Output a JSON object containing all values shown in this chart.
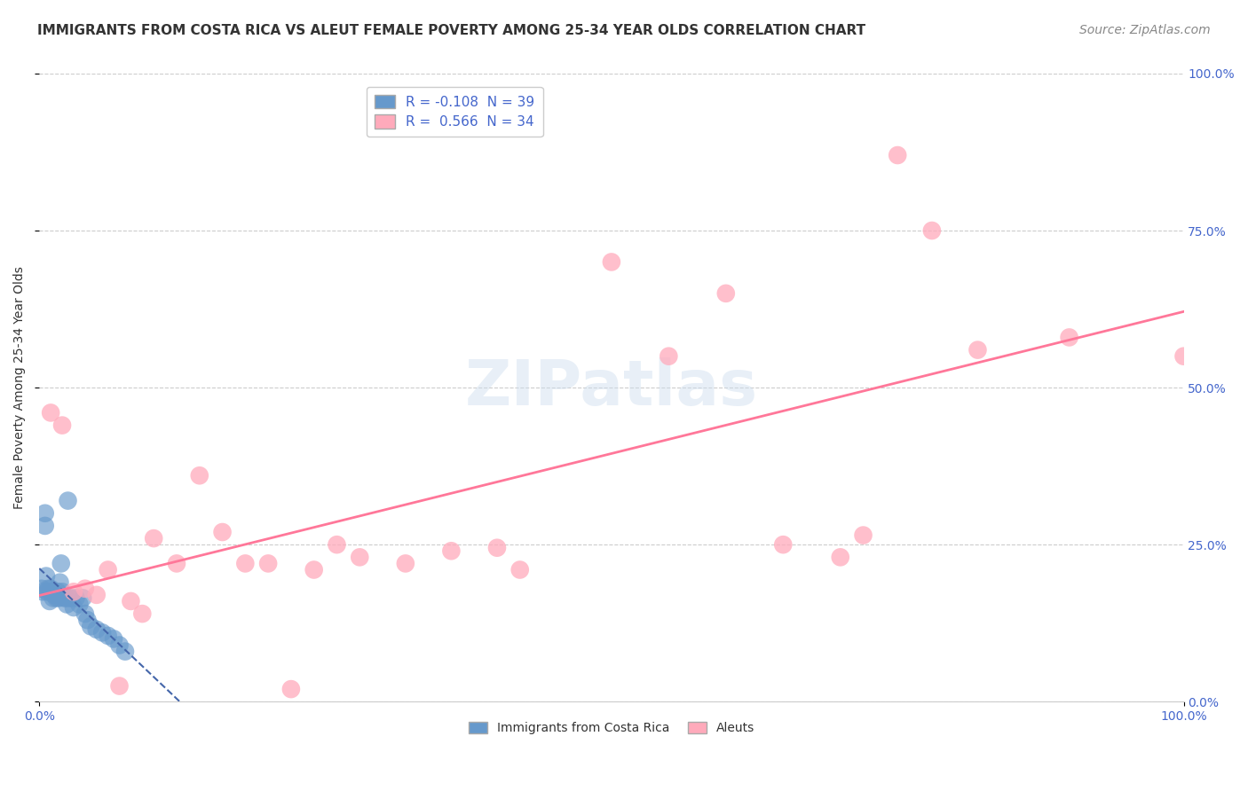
{
  "title": "IMMIGRANTS FROM COSTA RICA VS ALEUT FEMALE POVERTY AMONG 25-34 YEAR OLDS CORRELATION CHART",
  "source": "Source: ZipAtlas.com",
  "ylabel": "Female Poverty Among 25-34 Year Olds",
  "xlim": [
    0.0,
    1.0
  ],
  "ylim": [
    0.0,
    1.0
  ],
  "xtick_labels": [
    "0.0%",
    "100.0%"
  ],
  "ytick_labels": [
    "0.0%",
    "25.0%",
    "50.0%",
    "75.0%",
    "100.0%"
  ],
  "ytick_positions": [
    0.0,
    0.25,
    0.5,
    0.75,
    1.0
  ],
  "grid_color": "#cccccc",
  "background_color": "#ffffff",
  "watermark_text": "ZIPatlas",
  "color_blue": "#6699cc",
  "color_pink": "#ffaabb",
  "color_line_blue": "#4466aa",
  "color_line_pink": "#ff7799",
  "scatter_blue": [
    [
      0.002,
      0.18
    ],
    [
      0.003,
      0.175
    ],
    [
      0.005,
      0.3
    ],
    [
      0.005,
      0.28
    ],
    [
      0.006,
      0.2
    ],
    [
      0.007,
      0.175
    ],
    [
      0.008,
      0.18
    ],
    [
      0.009,
      0.16
    ],
    [
      0.01,
      0.175
    ],
    [
      0.01,
      0.18
    ],
    [
      0.012,
      0.175
    ],
    [
      0.012,
      0.165
    ],
    [
      0.013,
      0.17
    ],
    [
      0.014,
      0.17
    ],
    [
      0.015,
      0.165
    ],
    [
      0.016,
      0.175
    ],
    [
      0.017,
      0.165
    ],
    [
      0.018,
      0.19
    ],
    [
      0.019,
      0.22
    ],
    [
      0.02,
      0.175
    ],
    [
      0.022,
      0.165
    ],
    [
      0.023,
      0.165
    ],
    [
      0.024,
      0.155
    ],
    [
      0.025,
      0.32
    ],
    [
      0.026,
      0.165
    ],
    [
      0.028,
      0.165
    ],
    [
      0.03,
      0.15
    ],
    [
      0.032,
      0.165
    ],
    [
      0.035,
      0.155
    ],
    [
      0.038,
      0.165
    ],
    [
      0.04,
      0.14
    ],
    [
      0.042,
      0.13
    ],
    [
      0.045,
      0.12
    ],
    [
      0.05,
      0.115
    ],
    [
      0.055,
      0.11
    ],
    [
      0.06,
      0.105
    ],
    [
      0.065,
      0.1
    ],
    [
      0.07,
      0.09
    ],
    [
      0.075,
      0.08
    ]
  ],
  "scatter_pink": [
    [
      0.01,
      0.46
    ],
    [
      0.02,
      0.44
    ],
    [
      0.03,
      0.175
    ],
    [
      0.04,
      0.18
    ],
    [
      0.05,
      0.17
    ],
    [
      0.06,
      0.21
    ],
    [
      0.07,
      0.025
    ],
    [
      0.08,
      0.16
    ],
    [
      0.09,
      0.14
    ],
    [
      0.1,
      0.26
    ],
    [
      0.12,
      0.22
    ],
    [
      0.14,
      0.36
    ],
    [
      0.16,
      0.27
    ],
    [
      0.18,
      0.22
    ],
    [
      0.2,
      0.22
    ],
    [
      0.22,
      0.02
    ],
    [
      0.24,
      0.21
    ],
    [
      0.26,
      0.25
    ],
    [
      0.28,
      0.23
    ],
    [
      0.32,
      0.22
    ],
    [
      0.36,
      0.24
    ],
    [
      0.4,
      0.245
    ],
    [
      0.42,
      0.21
    ],
    [
      0.5,
      0.7
    ],
    [
      0.55,
      0.55
    ],
    [
      0.6,
      0.65
    ],
    [
      0.65,
      0.25
    ],
    [
      0.7,
      0.23
    ],
    [
      0.72,
      0.265
    ],
    [
      0.75,
      0.87
    ],
    [
      0.78,
      0.75
    ],
    [
      0.82,
      0.56
    ],
    [
      0.9,
      0.58
    ],
    [
      1.0,
      0.55
    ]
  ],
  "title_fontsize": 11,
  "label_fontsize": 10,
  "tick_fontsize": 10,
  "source_fontsize": 10,
  "legend1_R": "-0.108",
  "legend1_N": "39",
  "legend2_R": "0.566",
  "legend2_N": "34",
  "legend_bottom_labels": [
    "Immigrants from Costa Rica",
    "Aleuts"
  ]
}
